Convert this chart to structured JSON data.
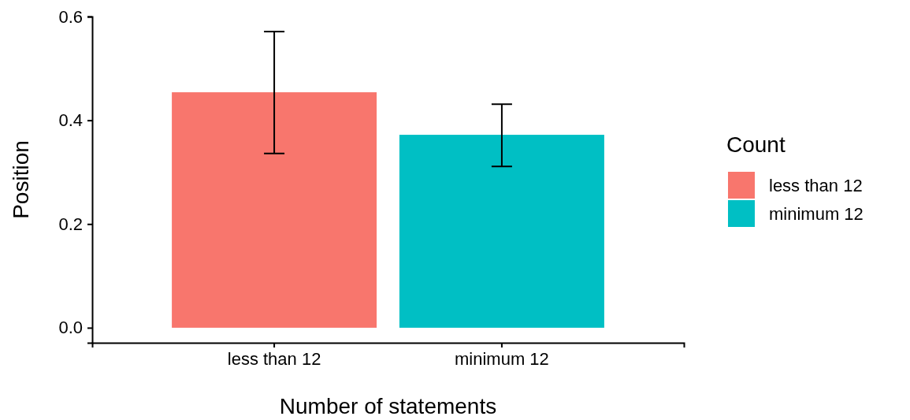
{
  "chart_data": {
    "type": "bar",
    "xlabel": "Number of statements",
    "ylabel": "Position",
    "legend_title": "Count",
    "categories": [
      "less than 12",
      "minimum 12"
    ],
    "series": [
      {
        "name": "less than 12",
        "color": "#f8766d",
        "values": [
          0.454,
          null
        ],
        "errors": [
          [
            0.336,
            0.571
          ],
          null
        ]
      },
      {
        "name": "minimum 12",
        "color": "#00bfc4",
        "values": [
          null,
          0.372
        ],
        "errors": [
          null,
          [
            0.311,
            0.431
          ]
        ]
      }
    ],
    "ylim": [
      -0.029,
      0.6
    ],
    "yticks": [
      {
        "value": 0,
        "label": "0.0"
      },
      {
        "value": 0.2,
        "label": "0.2"
      },
      {
        "value": 0.4,
        "label": "0.4"
      },
      {
        "value": 0.6,
        "label": "0.6"
      }
    ],
    "legend": "right"
  }
}
